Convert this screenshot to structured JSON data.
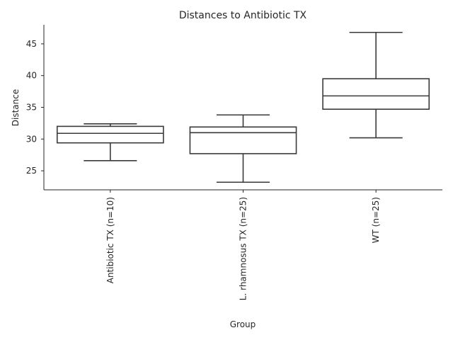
{
  "chart_data": {
    "type": "box",
    "title": "Distances to Antibiotic TX",
    "xlabel": "Group",
    "ylabel": "Distance",
    "ylim": [
      22,
      48
    ],
    "yticks": [
      25,
      30,
      35,
      40,
      45
    ],
    "grid": false,
    "categories": [
      "Antibiotic TX (n=10)",
      "L. rhamnosus TX (n=25)",
      "WT (n=25)"
    ],
    "boxes": [
      {
        "whislo": 26.6,
        "q1": 29.4,
        "med": 30.9,
        "q3": 32.0,
        "whishi": 32.4
      },
      {
        "whislo": 23.2,
        "q1": 27.7,
        "med": 31.0,
        "q3": 31.9,
        "whishi": 33.8
      },
      {
        "whislo": 30.2,
        "q1": 34.7,
        "med": 36.8,
        "q3": 39.5,
        "whishi": 46.8
      }
    ]
  }
}
